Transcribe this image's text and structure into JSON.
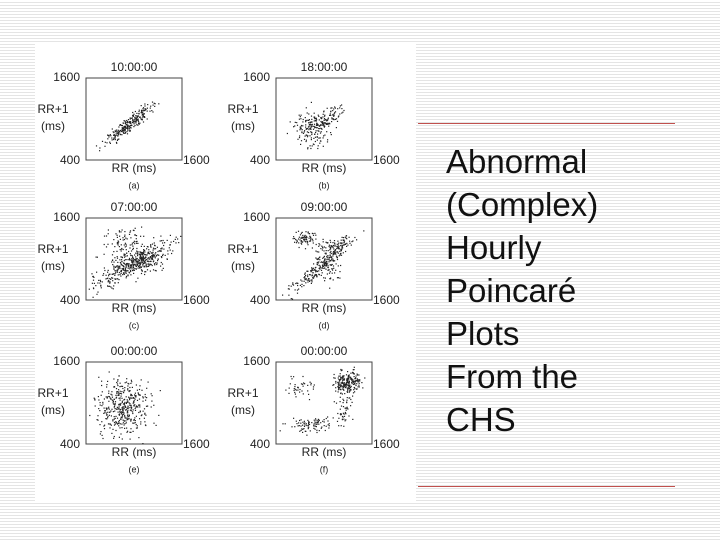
{
  "slide": {
    "title_lines": [
      "Abnormal",
      "(Complex)",
      "Hourly",
      "Poincaré",
      "Plots",
      "From the",
      "CHS"
    ],
    "panels": [
      {
        "time": "10:00:00",
        "y_max": "1600",
        "y_label": [
          "RR+1",
          "(ms)"
        ],
        "y_min": "400",
        "x_label": "RR (ms)",
        "x_max": "1600",
        "caption": "(a)"
      },
      {
        "time": "18:00:00",
        "y_max": "1600",
        "y_label": [
          "RR+1",
          "(ms)"
        ],
        "y_min": "400",
        "x_label": "RR (ms)",
        "x_max": "1600",
        "caption": "(b)"
      },
      {
        "time": "07:00:00",
        "y_max": "1600",
        "y_label": [
          "RR+1",
          "(ms)"
        ],
        "y_min": "400",
        "x_label": "RR (ms)",
        "x_max": "1600",
        "caption": "(c)"
      },
      {
        "time": "09:00:00",
        "y_max": "1600",
        "y_label": [
          "RR+1",
          "(ms)"
        ],
        "y_min": "400",
        "x_label": "RR (ms)",
        "x_max": "1600",
        "caption": "(d)"
      },
      {
        "time": "00:00:00",
        "y_max": "1600",
        "y_label": [
          "RR+1",
          "(ms)"
        ],
        "y_min": "400",
        "x_label": "RR (ms)",
        "x_max": "1600",
        "caption": "(e)"
      },
      {
        "time": "00:00:00",
        "y_max": "1600",
        "y_label": [
          "RR+1",
          "(ms)"
        ],
        "y_min": "400",
        "x_label": "RR (ms)",
        "x_max": "1600",
        "caption": "(f)"
      }
    ]
  }
}
